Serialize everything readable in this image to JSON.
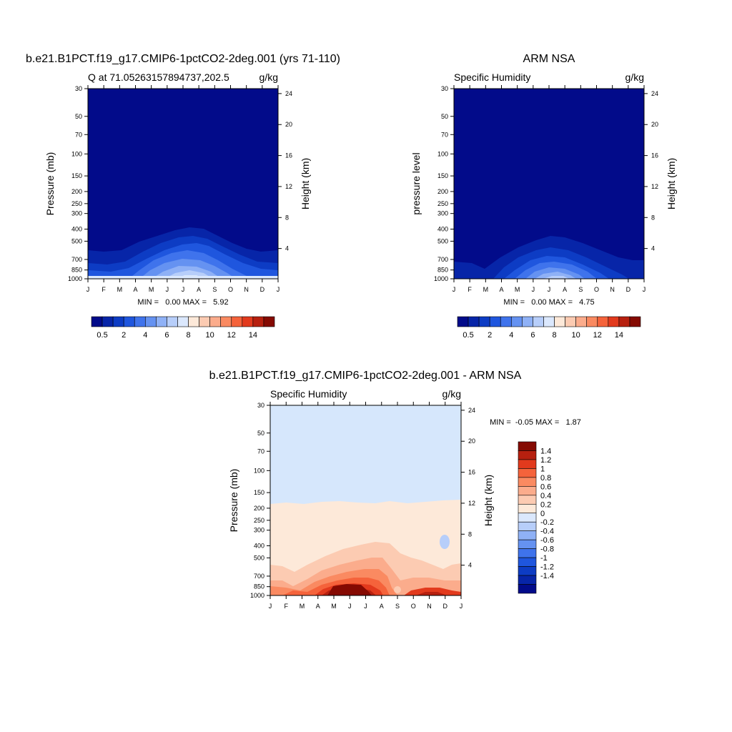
{
  "colors": {
    "cb_main": [
      "#020b8a",
      "#0725a8",
      "#0d3cc4",
      "#1f56de",
      "#3f73ec",
      "#6592f1",
      "#8fb1f6",
      "#b7cefa",
      "#dbe8fd",
      "#fde9d9",
      "#fccbb2",
      "#fbac8c",
      "#fa8a61",
      "#f5633b",
      "#e23a1d",
      "#b7200f",
      "#850a02"
    ],
    "cb_diff": [
      "#020b8a",
      "#0725a8",
      "#0d3cc4",
      "#1f56de",
      "#3f73ec",
      "#6592f1",
      "#8fb1f6",
      "#b7cefa",
      "#dbe8fd",
      "#fde9d9",
      "#fccbb2",
      "#fbac8c",
      "#fa8a61",
      "#f5633b",
      "#e23a1d",
      "#b7200f",
      "#850a02"
    ]
  },
  "chart_data": [
    {
      "type": "heatmap",
      "id": "model",
      "title": "b.e21.B1PCT.f19_g17.CMIP6-1pctCO2-2deg.001 (yrs 71-110)",
      "subtitle_left": "Q at 71.05263157894737,202.5",
      "subtitle_right": "g/kg",
      "ylabel": "Pressure (mb)",
      "ylabel_right": "Height (km)",
      "x_ticks": [
        "J",
        "F",
        "M",
        "A",
        "M",
        "J",
        "J",
        "A",
        "S",
        "O",
        "N",
        "D",
        "J"
      ],
      "y_ticks": [
        "30",
        "50",
        "70",
        "100",
        "150",
        "200",
        "250",
        "300",
        "400",
        "500",
        "700",
        "850",
        "1000"
      ],
      "y_right_ticks": [
        "24",
        "20",
        "16",
        "12",
        "8",
        "4"
      ],
      "min_max_text": "MIN =   0.00 MAX =   5.92",
      "contour_levels": [
        0.5,
        1,
        1.5,
        2,
        2.5,
        3,
        3.5,
        4,
        4.5,
        5,
        5.5
      ],
      "boundary_pressure_by_month": {
        "months": [
          "J",
          "F",
          "M",
          "A",
          "M",
          "J",
          "J",
          "A",
          "S",
          "O",
          "N",
          "D",
          "J"
        ],
        "level_0.5": [
          600,
          610,
          610,
          540,
          470,
          420,
          400,
          400,
          450,
          520,
          580,
          610,
          600
        ],
        "level_1.5": [
          770,
          780,
          780,
          700,
          600,
          530,
          500,
          500,
          560,
          650,
          720,
          770,
          770
        ],
        "level_2.5": [
          900,
          920,
          920,
          850,
          720,
          620,
          580,
          580,
          660,
          780,
          870,
          900,
          900
        ],
        "level_4": [
          1000,
          1000,
          1000,
          970,
          880,
          760,
          700,
          700,
          800,
          940,
          1000,
          1000,
          1000
        ]
      }
    },
    {
      "type": "heatmap",
      "id": "obs",
      "title": "ARM NSA",
      "subtitle_left": "Specific Humidity",
      "subtitle_right": "g/kg",
      "ylabel": "pressure level",
      "ylabel_right": "Height (km)",
      "x_ticks": [
        "J",
        "F",
        "M",
        "A",
        "M",
        "J",
        "J",
        "A",
        "S",
        "O",
        "N",
        "D",
        "J"
      ],
      "y_ticks": [
        "30",
        "50",
        "70",
        "100",
        "150",
        "200",
        "250",
        "300",
        "400",
        "500",
        "700",
        "850",
        "1000"
      ],
      "y_right_ticks": [
        "24",
        "20",
        "16",
        "12",
        "8",
        "4"
      ],
      "min_max_text": "MIN =   0.00 MAX =   4.75",
      "contour_levels": [
        0.5,
        1,
        1.5,
        2,
        2.5,
        3,
        3.5,
        4,
        4.5
      ]
    },
    {
      "type": "heatmap",
      "id": "diff",
      "title": "b.e21.B1PCT.f19_g17.CMIP6-1pctCO2-2deg.001 - ARM NSA",
      "subtitle_left": "Specific Humidity",
      "subtitle_right": "g/kg",
      "ylabel": "Pressure (mb)",
      "ylabel_right": "Height (km)",
      "x_ticks": [
        "J",
        "F",
        "M",
        "A",
        "M",
        "J",
        "J",
        "A",
        "S",
        "O",
        "N",
        "D",
        "J"
      ],
      "y_ticks": [
        "30",
        "50",
        "70",
        "100",
        "150",
        "200",
        "250",
        "300",
        "400",
        "500",
        "700",
        "850",
        "1000"
      ],
      "y_right_ticks": [
        "24",
        "20",
        "16",
        "12",
        "8",
        "4"
      ],
      "min_max_text": "MIN =  -0.05 MAX =   1.87",
      "contour_levels": [
        0,
        0.2,
        0.4,
        0.6,
        0.8,
        1,
        1.2,
        1.4
      ]
    }
  ],
  "colorbar_main": {
    "labels": [
      "0.5",
      "2",
      "4",
      "6",
      "8",
      "10",
      "12",
      "14"
    ]
  },
  "colorbar_diff": {
    "labels": [
      "1.4",
      "1.2",
      "1",
      "0.8",
      "0.6",
      "0.4",
      "0.2",
      "0",
      "-0.2",
      "-0.4",
      "-0.6",
      "-0.8",
      "-1",
      "-1.2",
      "-1.4"
    ]
  }
}
